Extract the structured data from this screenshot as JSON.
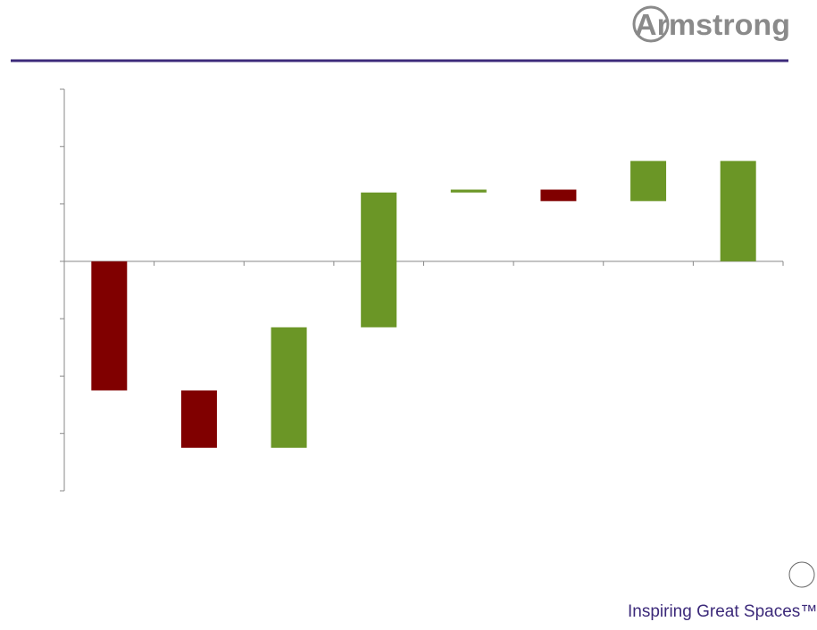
{
  "logo": "Armstrong",
  "tagline": "Inspiring Great Spaces™",
  "chart_data": {
    "type": "waterfall",
    "categories": [
      null,
      null,
      null,
      null,
      null,
      null,
      null,
      null
    ],
    "values": [
      -2.25,
      -1.0,
      2.1,
      2.35,
      0.05,
      -0.2,
      0.7,
      1.75
    ],
    "increase_color": "#6b9626",
    "decrease_color": "#800000",
    "ylim": [
      -4,
      3
    ],
    "yticks": [
      -4,
      -3,
      -2,
      -1,
      0,
      1,
      2,
      3
    ]
  }
}
